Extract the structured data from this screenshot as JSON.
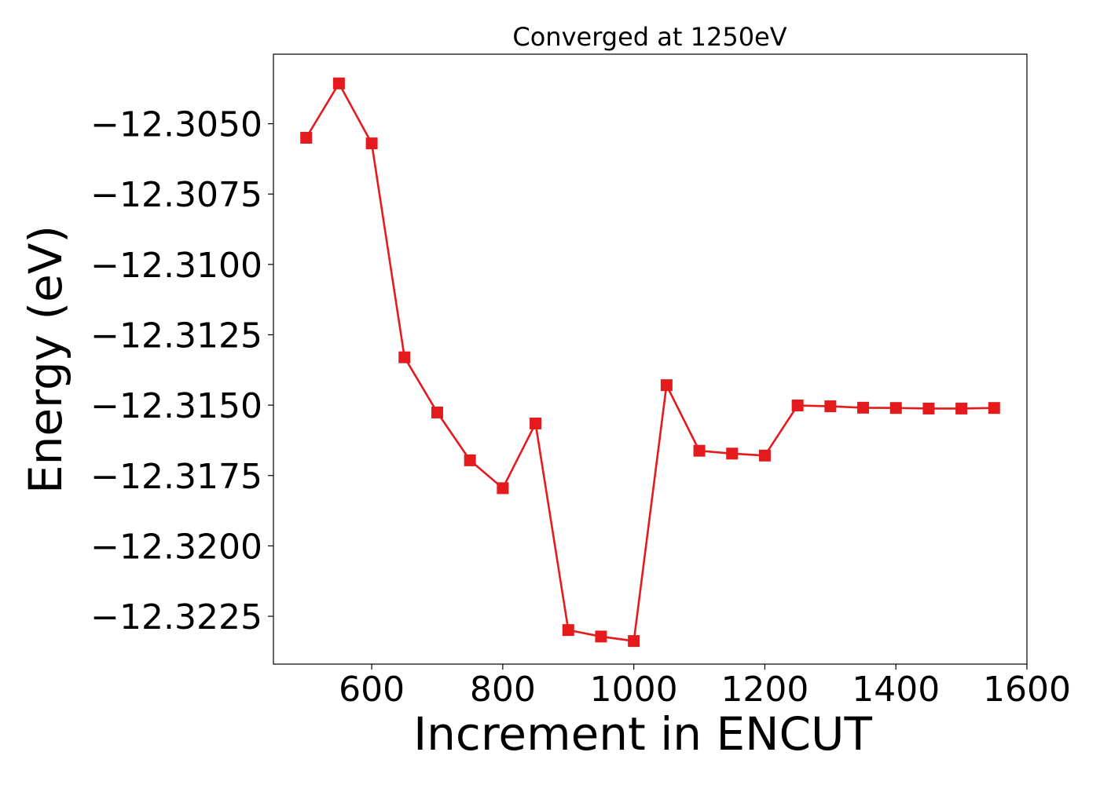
{
  "chart_data": {
    "type": "line",
    "title": "Converged at 1250eV",
    "xlabel": "Increment in ENCUT",
    "ylabel": "Energy (eV)",
    "xlim": [
      450,
      1600
    ],
    "ylim": [
      -12.3242,
      -12.30253
    ],
    "x_ticks": [
      600,
      800,
      1000,
      1200,
      1400,
      1600
    ],
    "x_tick_labels": [
      "600",
      "800",
      "1000",
      "1200",
      "1400",
      "1600"
    ],
    "y_ticks": [
      -12.305,
      -12.3075,
      -12.31,
      -12.3125,
      -12.315,
      -12.3175,
      -12.32,
      -12.3225
    ],
    "y_tick_labels": [
      "−12.3050",
      "−12.3075",
      "−12.3100",
      "−12.3125",
      "−12.3150",
      "−12.3175",
      "−12.3200",
      "−12.3225"
    ],
    "grid": false,
    "series": [
      {
        "color": "#e41a1c",
        "marker": "square",
        "x": [
          500,
          550,
          600,
          650,
          700,
          750,
          800,
          850,
          900,
          950,
          1000,
          1050,
          1100,
          1150,
          1200,
          1250,
          1300,
          1350,
          1400,
          1450,
          1500,
          1550
        ],
        "y": [
          -12.3055,
          -12.30357,
          -12.3057,
          -12.3133,
          -12.31526,
          -12.31696,
          -12.31795,
          -12.31565,
          -12.32299,
          -12.32322,
          -12.32338,
          -12.31429,
          -12.31662,
          -12.31672,
          -12.31679,
          -12.31501,
          -12.31504,
          -12.31509,
          -12.3151,
          -12.31512,
          -12.31512,
          -12.3151
        ]
      }
    ]
  }
}
